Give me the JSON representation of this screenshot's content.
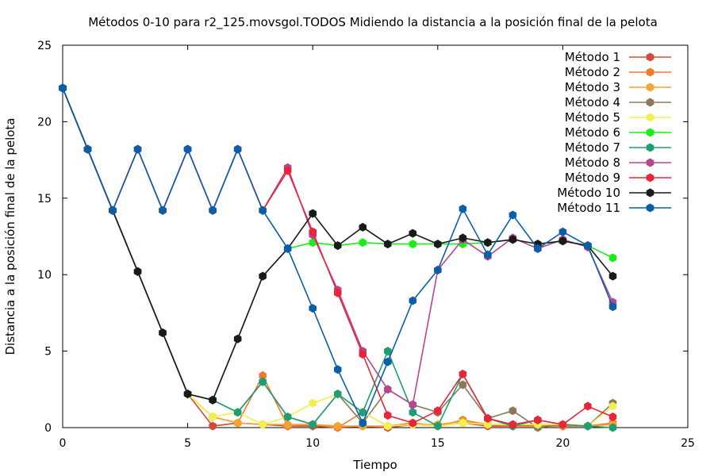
{
  "chart_data": {
    "type": "line",
    "title": "Métodos 0-10 para r2_125.movsgol.TODOS Midiendo la distancia a la posición final de la pelota",
    "xlabel": "Tiempo",
    "ylabel": "Distancia a la posición final de la pelota",
    "xlim": [
      0,
      25
    ],
    "ylim": [
      0,
      25
    ],
    "xticks": [
      0,
      5,
      10,
      15,
      20,
      25
    ],
    "yticks": [
      0,
      5,
      10,
      15,
      20,
      25
    ],
    "grid": false,
    "legend_position": "top-right",
    "x": [
      0,
      1,
      2,
      3,
      4,
      5,
      6,
      7,
      8,
      9,
      10,
      11,
      12,
      13,
      14,
      15,
      16,
      17,
      18,
      19,
      20,
      21,
      22
    ],
    "series": [
      {
        "name": "Método 1",
        "color": "#d04a3c",
        "values": [
          22.2,
          18.2,
          14.2,
          10.2,
          6.2,
          2.2,
          0.1,
          0.3,
          0.2,
          0.1,
          0.1,
          0.0,
          0.1,
          0.0,
          0.2,
          0.1,
          0.3,
          0.1,
          0.1,
          0.2,
          0.1,
          0.1,
          0.3
        ]
      },
      {
        "name": "Método 2",
        "color": "#f07a2a",
        "values": [
          22.2,
          18.2,
          14.2,
          10.2,
          6.2,
          2.2,
          0.7,
          0.3,
          3.4,
          0.1,
          0.2,
          0.0,
          1.0,
          0.1,
          0.3,
          0.1,
          0.5,
          0.2,
          0.1,
          0.1,
          0.1,
          0.1,
          0.3
        ]
      },
      {
        "name": "Método 3",
        "color": "#f5a433",
        "values": [
          22.2,
          18.2,
          14.2,
          10.2,
          6.2,
          2.2,
          0.7,
          0.3,
          0.2,
          0.2,
          0.2,
          0.1,
          0.1,
          0.1,
          0.2,
          0.2,
          0.4,
          0.2,
          0.2,
          0.2,
          0.2,
          0.1,
          0.2
        ]
      },
      {
        "name": "Método 4",
        "color": "#8a7a58",
        "values": [
          22.2,
          18.2,
          14.2,
          10.2,
          6.2,
          2.2,
          1.8,
          1.0,
          3.0,
          0.7,
          0.2,
          2.2,
          0.3,
          2.5,
          1.5,
          1.0,
          2.8,
          0.6,
          1.1,
          0.0,
          0.2,
          0.1,
          1.6
        ]
      },
      {
        "name": "Método 5",
        "color": "#f0f050",
        "values": [
          22.2,
          18.2,
          14.2,
          10.2,
          6.2,
          2.2,
          0.7,
          1.0,
          0.2,
          0.7,
          1.6,
          2.2,
          1.0,
          0.1,
          0.2,
          0.1,
          0.3,
          0.2,
          0.2,
          0.2,
          0.2,
          0.1,
          1.4
        ]
      },
      {
        "name": "Método 6",
        "color": "#1aee1a",
        "values": [
          22.2,
          18.2,
          14.2,
          10.2,
          6.2,
          2.2,
          1.8,
          5.8,
          9.9,
          11.7,
          12.1,
          11.9,
          12.1,
          12.0,
          12.0,
          12.0,
          12.0,
          12.1,
          12.3,
          12.0,
          12.2,
          11.9,
          11.1
        ]
      },
      {
        "name": "Método 7",
        "color": "#1e9e72",
        "values": [
          22.2,
          18.2,
          14.2,
          10.2,
          6.2,
          2.2,
          1.8,
          1.0,
          3.0,
          0.7,
          0.2,
          2.2,
          1.0,
          5.0,
          1.0,
          0.1,
          3.5,
          0.6,
          0.1,
          0.5,
          0.2,
          0.1,
          0.0
        ]
      },
      {
        "name": "Método 8",
        "color": "#b8458f",
        "values": [
          22.2,
          18.2,
          14.2,
          18.2,
          14.2,
          18.2,
          14.2,
          18.2,
          14.2,
          17.0,
          12.6,
          9.0,
          5.0,
          2.5,
          1.5,
          10.3,
          12.3,
          11.2,
          12.4,
          11.7,
          12.3,
          11.8,
          8.2
        ]
      },
      {
        "name": "Método 9",
        "color": "#e8253a",
        "values": [
          22.2,
          18.2,
          14.2,
          18.2,
          14.2,
          18.2,
          14.2,
          18.2,
          14.2,
          16.8,
          12.8,
          8.8,
          4.8,
          0.8,
          0.3,
          1.1,
          3.5,
          0.6,
          0.2,
          0.5,
          0.2,
          1.4,
          0.7
        ]
      },
      {
        "name": "Método 10",
        "color": "#1a1a1a",
        "values": [
          22.2,
          18.2,
          14.2,
          10.2,
          6.2,
          2.2,
          1.8,
          5.8,
          9.9,
          11.7,
          14.0,
          11.9,
          13.1,
          12.0,
          12.7,
          12.0,
          12.4,
          12.1,
          12.3,
          12.0,
          12.2,
          11.9,
          9.9
        ]
      },
      {
        "name": "Método 11",
        "color": "#0a5fa8",
        "values": [
          22.2,
          18.2,
          14.2,
          18.2,
          14.2,
          18.2,
          14.2,
          18.2,
          14.2,
          11.7,
          7.8,
          3.8,
          0.3,
          4.3,
          8.3,
          10.3,
          14.3,
          11.3,
          13.9,
          11.7,
          12.8,
          11.9,
          7.9
        ]
      }
    ]
  }
}
